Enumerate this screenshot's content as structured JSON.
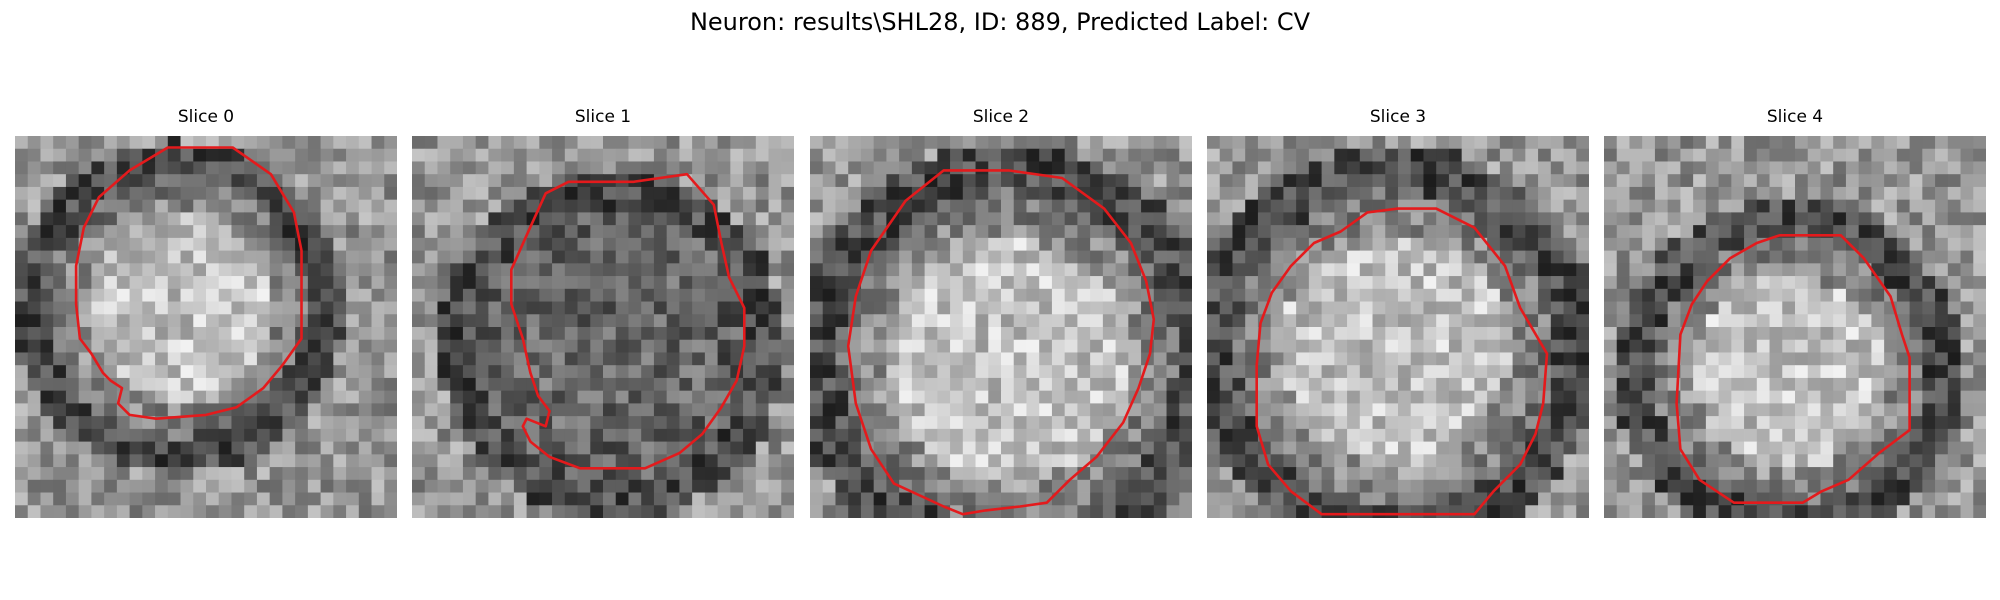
{
  "figure": {
    "title": "Neuron: results\\SHL28, ID: 889, Predicted Label: CV",
    "contour_color": "#e41a1c"
  },
  "slices": [
    {
      "title": "Slice 0",
      "center_brightness": "bright",
      "ring_width": 0.55,
      "contour": [
        [
          0.4,
          0.03
        ],
        [
          0.57,
          0.03
        ],
        [
          0.67,
          0.1
        ],
        [
          0.73,
          0.2
        ],
        [
          0.75,
          0.3
        ],
        [
          0.75,
          0.45
        ],
        [
          0.75,
          0.53
        ],
        [
          0.7,
          0.6
        ],
        [
          0.65,
          0.66
        ],
        [
          0.58,
          0.71
        ],
        [
          0.5,
          0.73
        ],
        [
          0.37,
          0.74
        ],
        [
          0.3,
          0.73
        ],
        [
          0.27,
          0.7
        ],
        [
          0.28,
          0.66
        ],
        [
          0.25,
          0.64
        ],
        [
          0.23,
          0.62
        ],
        [
          0.2,
          0.57
        ],
        [
          0.17,
          0.53
        ],
        [
          0.16,
          0.44
        ],
        [
          0.16,
          0.34
        ],
        [
          0.18,
          0.24
        ],
        [
          0.22,
          0.16
        ],
        [
          0.3,
          0.09
        ]
      ]
    },
    {
      "title": "Slice 1",
      "center_brightness": "dark",
      "ring_width": 0.55,
      "contour": [
        [
          0.35,
          0.15
        ],
        [
          0.41,
          0.12
        ],
        [
          0.58,
          0.12
        ],
        [
          0.72,
          0.1
        ],
        [
          0.79,
          0.18
        ],
        [
          0.81,
          0.28
        ],
        [
          0.83,
          0.37
        ],
        [
          0.87,
          0.45
        ],
        [
          0.87,
          0.55
        ],
        [
          0.85,
          0.64
        ],
        [
          0.81,
          0.71
        ],
        [
          0.76,
          0.78
        ],
        [
          0.7,
          0.83
        ],
        [
          0.61,
          0.87
        ],
        [
          0.55,
          0.87
        ],
        [
          0.44,
          0.87
        ],
        [
          0.36,
          0.84
        ],
        [
          0.31,
          0.8
        ],
        [
          0.29,
          0.76
        ],
        [
          0.3,
          0.74
        ],
        [
          0.35,
          0.76
        ],
        [
          0.36,
          0.72
        ],
        [
          0.33,
          0.68
        ],
        [
          0.31,
          0.62
        ],
        [
          0.29,
          0.53
        ],
        [
          0.26,
          0.44
        ],
        [
          0.26,
          0.35
        ],
        [
          0.3,
          0.26
        ]
      ]
    },
    {
      "title": "Slice 2",
      "center_brightness": "bright",
      "ring_width": 0.5,
      "contour": [
        [
          0.35,
          0.09
        ],
        [
          0.52,
          0.09
        ],
        [
          0.66,
          0.11
        ],
        [
          0.77,
          0.19
        ],
        [
          0.84,
          0.28
        ],
        [
          0.88,
          0.38
        ],
        [
          0.9,
          0.48
        ],
        [
          0.89,
          0.57
        ],
        [
          0.86,
          0.66
        ],
        [
          0.82,
          0.75
        ],
        [
          0.75,
          0.84
        ],
        [
          0.68,
          0.9
        ],
        [
          0.62,
          0.96
        ],
        [
          0.55,
          0.97
        ],
        [
          0.46,
          0.98
        ],
        [
          0.4,
          0.99
        ],
        [
          0.35,
          0.97
        ],
        [
          0.22,
          0.91
        ],
        [
          0.16,
          0.82
        ],
        [
          0.12,
          0.7
        ],
        [
          0.1,
          0.55
        ],
        [
          0.12,
          0.42
        ],
        [
          0.16,
          0.3
        ],
        [
          0.25,
          0.17
        ]
      ]
    },
    {
      "title": "Slice 3",
      "center_brightness": "bright",
      "ring_width": 0.5,
      "contour": [
        [
          0.35,
          0.25
        ],
        [
          0.42,
          0.2
        ],
        [
          0.5,
          0.19
        ],
        [
          0.6,
          0.19
        ],
        [
          0.7,
          0.24
        ],
        [
          0.78,
          0.34
        ],
        [
          0.82,
          0.45
        ],
        [
          0.89,
          0.57
        ],
        [
          0.88,
          0.7
        ],
        [
          0.86,
          0.78
        ],
        [
          0.82,
          0.86
        ],
        [
          0.75,
          0.93
        ],
        [
          0.7,
          0.99
        ],
        [
          0.3,
          0.99
        ],
        [
          0.22,
          0.93
        ],
        [
          0.16,
          0.86
        ],
        [
          0.13,
          0.76
        ],
        [
          0.13,
          0.6
        ],
        [
          0.14,
          0.49
        ],
        [
          0.17,
          0.41
        ],
        [
          0.22,
          0.34
        ],
        [
          0.28,
          0.28
        ]
      ]
    },
    {
      "title": "Slice 4",
      "center_brightness": "bright",
      "ring_width": 0.5,
      "contour": [
        [
          0.46,
          0.26
        ],
        [
          0.62,
          0.26
        ],
        [
          0.68,
          0.32
        ],
        [
          0.75,
          0.42
        ],
        [
          0.78,
          0.52
        ],
        [
          0.8,
          0.58
        ],
        [
          0.8,
          0.77
        ],
        [
          0.72,
          0.83
        ],
        [
          0.64,
          0.9
        ],
        [
          0.57,
          0.93
        ],
        [
          0.52,
          0.96
        ],
        [
          0.43,
          0.96
        ],
        [
          0.34,
          0.96
        ],
        [
          0.25,
          0.9
        ],
        [
          0.2,
          0.82
        ],
        [
          0.19,
          0.7
        ],
        [
          0.2,
          0.52
        ],
        [
          0.23,
          0.44
        ],
        [
          0.27,
          0.38
        ],
        [
          0.33,
          0.32
        ],
        [
          0.4,
          0.28
        ]
      ]
    }
  ]
}
